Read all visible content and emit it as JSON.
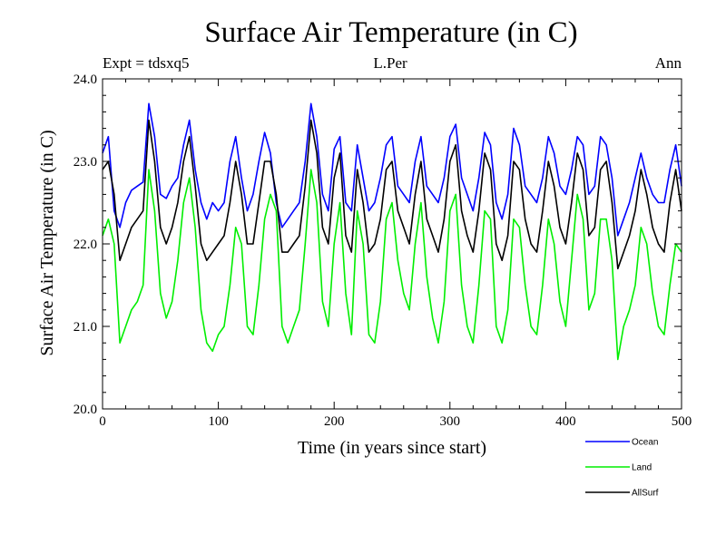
{
  "chart_data": {
    "type": "line",
    "title": "Surface Air Temperature (in C)",
    "subtitle_left": "Expt = tdsxq5",
    "subtitle_center": "L.Per",
    "subtitle_right": "Ann",
    "xlabel": "Time (in years since start)",
    "ylabel": "Surface Air Temperature (in C)",
    "xlim": [
      0,
      500
    ],
    "ylim": [
      20.0,
      24.0
    ],
    "xticks": [
      0,
      100,
      200,
      300,
      400,
      500
    ],
    "xtick_labels": [
      "0",
      "100",
      "200",
      "300",
      "400",
      "500"
    ],
    "yticks": [
      20.0,
      21.0,
      22.0,
      23.0,
      24.0
    ],
    "ytick_labels": [
      "20.0",
      "21.0",
      "22.0",
      "23.0",
      "24.0"
    ],
    "legend_position": "bottom-right, below plot",
    "series": [
      {
        "name": "Ocean",
        "color": "#0000ff",
        "x": [
          0,
          5,
          10,
          15,
          20,
          25,
          30,
          35,
          40,
          45,
          50,
          55,
          60,
          65,
          70,
          75,
          80,
          85,
          90,
          95,
          100,
          105,
          110,
          115,
          120,
          125,
          130,
          135,
          140,
          145,
          150,
          155,
          160,
          165,
          170,
          175,
          180,
          185,
          190,
          195,
          200,
          205,
          210,
          215,
          220,
          225,
          230,
          235,
          240,
          245,
          250,
          255,
          260,
          265,
          270,
          275,
          280,
          285,
          290,
          295,
          300,
          305,
          310,
          315,
          320,
          325,
          330,
          335,
          340,
          345,
          350,
          355,
          360,
          365,
          370,
          375,
          380,
          385,
          390,
          395,
          400,
          405,
          410,
          415,
          420,
          425,
          430,
          435,
          440,
          445,
          450,
          455,
          460,
          465,
          470,
          475,
          480,
          485,
          490,
          495,
          500
        ],
        "values": [
          23.1,
          23.3,
          22.4,
          22.2,
          22.5,
          22.65,
          22.7,
          22.75,
          23.7,
          23.3,
          22.6,
          22.55,
          22.7,
          22.8,
          23.2,
          23.5,
          22.9,
          22.5,
          22.3,
          22.5,
          22.4,
          22.5,
          23.0,
          23.3,
          22.8,
          22.4,
          22.6,
          23.0,
          23.35,
          23.1,
          22.5,
          22.2,
          22.3,
          22.4,
          22.5,
          23.0,
          23.7,
          23.3,
          22.6,
          22.4,
          23.15,
          23.3,
          22.5,
          22.4,
          23.2,
          22.8,
          22.4,
          22.5,
          22.8,
          23.2,
          23.3,
          22.7,
          22.6,
          22.5,
          23.0,
          23.3,
          22.7,
          22.6,
          22.5,
          22.8,
          23.3,
          23.45,
          22.8,
          22.6,
          22.4,
          22.8,
          23.35,
          23.2,
          22.5,
          22.3,
          22.6,
          23.4,
          23.2,
          22.7,
          22.6,
          22.5,
          22.8,
          23.3,
          23.1,
          22.7,
          22.6,
          22.9,
          23.3,
          23.2,
          22.6,
          22.7,
          23.3,
          23.2,
          22.8,
          22.1,
          22.3,
          22.5,
          22.8,
          23.1,
          22.8,
          22.6,
          22.5,
          22.5,
          22.9,
          23.2,
          22.7
        ]
      },
      {
        "name": "Land",
        "color": "#00ee00",
        "x": [
          0,
          5,
          10,
          15,
          20,
          25,
          30,
          35,
          40,
          45,
          50,
          55,
          60,
          65,
          70,
          75,
          80,
          85,
          90,
          95,
          100,
          105,
          110,
          115,
          120,
          125,
          130,
          135,
          140,
          145,
          150,
          155,
          160,
          165,
          170,
          175,
          180,
          185,
          190,
          195,
          200,
          205,
          210,
          215,
          220,
          225,
          230,
          235,
          240,
          245,
          250,
          255,
          260,
          265,
          270,
          275,
          280,
          285,
          290,
          295,
          300,
          305,
          310,
          315,
          320,
          325,
          330,
          335,
          340,
          345,
          350,
          355,
          360,
          365,
          370,
          375,
          380,
          385,
          390,
          395,
          400,
          405,
          410,
          415,
          420,
          425,
          430,
          435,
          440,
          445,
          450,
          455,
          460,
          465,
          470,
          475,
          480,
          485,
          490,
          495,
          500
        ],
        "values": [
          22.1,
          22.3,
          22.0,
          20.8,
          21.0,
          21.2,
          21.3,
          21.5,
          22.9,
          22.4,
          21.4,
          21.1,
          21.3,
          21.8,
          22.5,
          22.8,
          22.2,
          21.2,
          20.8,
          20.7,
          20.9,
          21.0,
          21.5,
          22.2,
          22.0,
          21.0,
          20.9,
          21.5,
          22.3,
          22.6,
          22.4,
          21.0,
          20.8,
          21.0,
          21.2,
          22.0,
          22.9,
          22.5,
          21.3,
          21.0,
          22.0,
          22.5,
          21.4,
          20.9,
          22.4,
          22.0,
          20.9,
          20.8,
          21.3,
          22.3,
          22.5,
          21.8,
          21.4,
          21.2,
          22.0,
          22.5,
          21.6,
          21.1,
          20.8,
          21.3,
          22.4,
          22.6,
          21.5,
          21.0,
          20.8,
          21.5,
          22.4,
          22.3,
          21.0,
          20.8,
          21.2,
          22.3,
          22.2,
          21.5,
          21.0,
          20.9,
          21.5,
          22.3,
          22.0,
          21.3,
          21.0,
          21.8,
          22.6,
          22.3,
          21.2,
          21.4,
          22.3,
          22.3,
          21.8,
          20.6,
          21.0,
          21.2,
          21.5,
          22.2,
          22.0,
          21.4,
          21.0,
          20.9,
          21.5,
          22.0,
          21.9
        ]
      },
      {
        "name": "AllSurf",
        "color": "#000000",
        "x": [
          0,
          5,
          10,
          15,
          20,
          25,
          30,
          35,
          40,
          45,
          50,
          55,
          60,
          65,
          70,
          75,
          80,
          85,
          90,
          95,
          100,
          105,
          110,
          115,
          120,
          125,
          130,
          135,
          140,
          145,
          150,
          155,
          160,
          165,
          170,
          175,
          180,
          185,
          190,
          195,
          200,
          205,
          210,
          215,
          220,
          225,
          230,
          235,
          240,
          245,
          250,
          255,
          260,
          265,
          270,
          275,
          280,
          285,
          290,
          295,
          300,
          305,
          310,
          315,
          320,
          325,
          330,
          335,
          340,
          345,
          350,
          355,
          360,
          365,
          370,
          375,
          380,
          385,
          390,
          395,
          400,
          405,
          410,
          415,
          420,
          425,
          430,
          435,
          440,
          445,
          450,
          455,
          460,
          465,
          470,
          475,
          480,
          485,
          490,
          495,
          500
        ],
        "values": [
          22.9,
          23.0,
          22.6,
          21.8,
          22.0,
          22.2,
          22.3,
          22.4,
          23.5,
          23.0,
          22.2,
          22.0,
          22.2,
          22.5,
          23.0,
          23.3,
          22.7,
          22.0,
          21.8,
          21.9,
          22.0,
          22.1,
          22.5,
          23.0,
          22.6,
          22.0,
          22.0,
          22.5,
          23.0,
          23.0,
          22.6,
          21.9,
          21.9,
          22.0,
          22.1,
          22.7,
          23.5,
          23.1,
          22.2,
          22.0,
          22.8,
          23.1,
          22.1,
          21.9,
          22.9,
          22.5,
          21.9,
          22.0,
          22.3,
          22.9,
          23.0,
          22.4,
          22.2,
          22.0,
          22.6,
          23.0,
          22.3,
          22.1,
          21.9,
          22.3,
          23.0,
          23.2,
          22.4,
          22.1,
          21.9,
          22.4,
          23.1,
          22.9,
          22.0,
          21.8,
          22.1,
          23.0,
          22.9,
          22.3,
          22.0,
          21.9,
          22.4,
          23.0,
          22.7,
          22.2,
          22.0,
          22.5,
          23.1,
          22.9,
          22.1,
          22.2,
          22.9,
          23.0,
          22.5,
          21.7,
          21.9,
          22.1,
          22.4,
          22.9,
          22.6,
          22.2,
          22.0,
          21.9,
          22.5,
          22.9,
          22.4
        ]
      }
    ]
  }
}
